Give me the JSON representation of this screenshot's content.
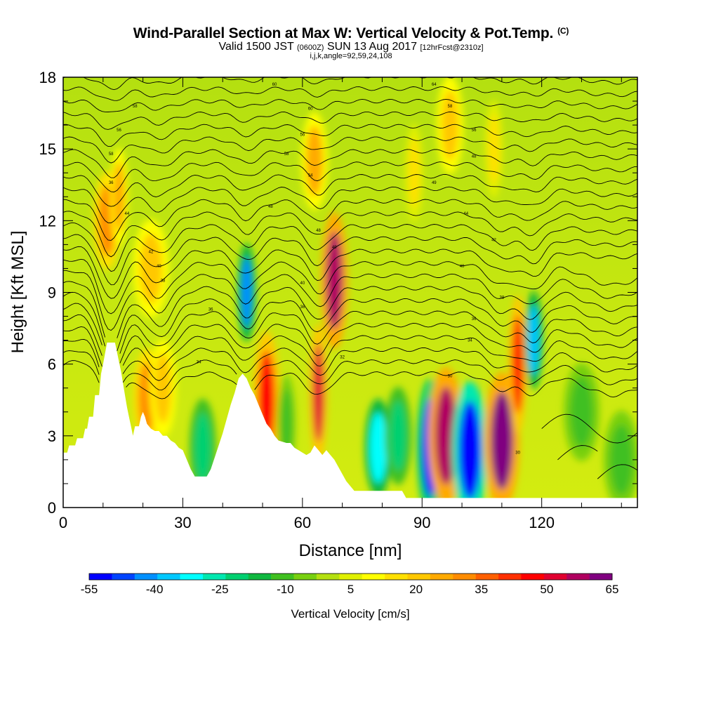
{
  "title": {
    "main": "Wind-Parallel Section at Max W: Vertical Velocity & Pot.Temp.",
    "copyright": "(C)",
    "valid_prefix": "Valid 1500 JST",
    "valid_utc": "(0600Z)",
    "valid_date": "SUN 13 Aug 2017",
    "forecast": "[12hrFcst@2310z]",
    "params": "i,j,k,angle=92,59,24,108"
  },
  "chart_data": {
    "type": "heatmap",
    "xlabel": "Distance [nm]",
    "ylabel": "Height [Kft MSL]",
    "xlim": [
      0,
      144
    ],
    "ylim": [
      0,
      18
    ],
    "xticks": [
      0,
      30,
      60,
      90,
      120
    ],
    "yticks": [
      0,
      3,
      6,
      9,
      12,
      15,
      18
    ],
    "colorbar": {
      "label": "Vertical Velocity [cm/s]",
      "tick_labels": [
        "-55",
        "-40",
        "-25",
        "-10",
        "5",
        "20",
        "35",
        "50",
        "65"
      ],
      "tick_values": [
        -55,
        -40,
        -25,
        -10,
        5,
        20,
        35,
        50,
        65
      ],
      "colors": [
        "#0000ff",
        "#0044ff",
        "#0090ff",
        "#00c8ff",
        "#00ffff",
        "#00e8b0",
        "#00d070",
        "#10b840",
        "#40c020",
        "#78d010",
        "#b4e010",
        "#e0f000",
        "#ffff00",
        "#ffe000",
        "#ffc800",
        "#ffaa00",
        "#ff8c00",
        "#ff6000",
        "#ff3000",
        "#ff0000",
        "#e00030",
        "#b00060",
        "#800080"
      ]
    },
    "terrain_profile": [
      [
        0,
        2.3
      ],
      [
        1,
        2.3
      ],
      [
        1.5,
        2.6
      ],
      [
        3,
        2.6
      ],
      [
        3.5,
        2.9
      ],
      [
        5,
        2.9
      ],
      [
        5.5,
        3.3
      ],
      [
        6,
        3.3
      ],
      [
        6.5,
        3.8
      ],
      [
        7.5,
        3.8
      ],
      [
        8,
        4.7
      ],
      [
        9,
        4.7
      ],
      [
        9.5,
        5.6
      ],
      [
        10,
        6
      ],
      [
        11,
        6.9
      ],
      [
        13,
        6.9
      ],
      [
        13.5,
        6.5
      ],
      [
        14,
        6.1
      ],
      [
        14.5,
        5.7
      ],
      [
        15,
        5.2
      ],
      [
        15.5,
        4.7
      ],
      [
        16,
        4.2
      ],
      [
        16.5,
        3.8
      ],
      [
        17,
        3.4
      ],
      [
        17.5,
        3
      ],
      [
        18,
        3.4
      ],
      [
        19,
        3.4
      ],
      [
        19.5,
        3.8
      ],
      [
        20,
        4
      ],
      [
        20.5,
        3.8
      ],
      [
        21,
        3.5
      ],
      [
        22,
        3.3
      ],
      [
        23,
        3.2
      ],
      [
        24,
        3.2
      ],
      [
        25,
        3.0
      ],
      [
        26,
        3.0
      ],
      [
        27,
        2.8
      ],
      [
        28,
        2.7
      ],
      [
        29,
        2.5
      ],
      [
        30,
        2.4
      ],
      [
        31,
        2.0
      ],
      [
        32,
        1.6
      ],
      [
        33,
        1.3
      ],
      [
        35,
        1.3
      ],
      [
        36,
        1.3
      ],
      [
        37,
        1.6
      ],
      [
        38,
        2.1
      ],
      [
        39,
        2.6
      ],
      [
        40,
        3.1
      ],
      [
        41,
        3.7
      ],
      [
        42,
        4.3
      ],
      [
        43,
        4.8
      ],
      [
        44,
        5.4
      ],
      [
        45,
        5.6
      ],
      [
        46,
        5.4
      ],
      [
        47,
        5.0
      ],
      [
        48,
        4.7
      ],
      [
        49,
        4.3
      ],
      [
        50,
        3.9
      ],
      [
        51,
        3.5
      ],
      [
        52,
        3.3
      ],
      [
        53,
        3.0
      ],
      [
        54,
        2.8
      ],
      [
        56,
        2.7
      ],
      [
        57,
        2.7
      ],
      [
        58,
        2.5
      ],
      [
        59,
        2.4
      ],
      [
        60,
        2.3
      ],
      [
        61,
        2.2
      ],
      [
        62,
        2.3
      ],
      [
        63,
        2.6
      ],
      [
        64,
        2.4
      ],
      [
        65,
        2.2
      ],
      [
        66,
        2.4
      ],
      [
        67,
        2.2
      ],
      [
        68,
        2.0
      ],
      [
        69,
        1.7
      ],
      [
        70,
        1.4
      ],
      [
        71,
        1.1
      ],
      [
        72,
        0.9
      ],
      [
        73,
        0.7
      ],
      [
        80,
        0.7
      ],
      [
        85,
        0.7
      ],
      [
        86,
        0.4
      ],
      [
        87,
        0.4
      ],
      [
        114,
        0.4
      ],
      [
        116,
        0.4
      ],
      [
        120,
        0.4
      ],
      [
        144,
        0.4
      ]
    ],
    "velocity_cells": [
      {
        "x": 11,
        "y": 12,
        "w": 3,
        "value": 30
      },
      {
        "x": 14,
        "y": 13,
        "w": 2,
        "value": 25
      },
      {
        "x": 22,
        "y": 10,
        "w": 4,
        "value": 20
      },
      {
        "x": 21,
        "y": 4.6,
        "w": 3,
        "value": 30
      },
      {
        "x": 25,
        "y": 5.0,
        "w": 3,
        "value": 20
      },
      {
        "x": 35,
        "y": 2.5,
        "w": 3,
        "value": -20
      },
      {
        "x": 46,
        "y": 9.0,
        "w": 2,
        "value": -40
      },
      {
        "x": 51,
        "y": 4.5,
        "w": 3,
        "value": 45
      },
      {
        "x": 56,
        "y": 3.5,
        "w": 2,
        "value": -10
      },
      {
        "x": 64,
        "y": 4.8,
        "w": 2,
        "value": 50
      },
      {
        "x": 68,
        "y": 9.5,
        "w": 3,
        "value": 55
      },
      {
        "x": 63,
        "y": 14.5,
        "w": 3,
        "value": 25
      },
      {
        "x": 79,
        "y": 2.5,
        "w": 3,
        "value": -30
      },
      {
        "x": 84,
        "y": 3.0,
        "w": 3,
        "value": -20
      },
      {
        "x": 92,
        "y": 2.5,
        "w": 3,
        "value": -50
      },
      {
        "x": 96,
        "y": 3.0,
        "w": 4,
        "value": 55
      },
      {
        "x": 102,
        "y": 2.4,
        "w": 4,
        "value": -55
      },
      {
        "x": 110,
        "y": 2.8,
        "w": 4,
        "value": 60
      },
      {
        "x": 114,
        "y": 6.0,
        "w": 2,
        "value": 45
      },
      {
        "x": 118,
        "y": 7.0,
        "w": 2,
        "value": -35
      },
      {
        "x": 88,
        "y": 14.0,
        "w": 2,
        "value": 15
      },
      {
        "x": 97,
        "y": 16.0,
        "w": 3,
        "value": 20
      },
      {
        "x": 108,
        "y": 15.0,
        "w": 2,
        "value": 15
      },
      {
        "x": 130,
        "y": 4.0,
        "w": 4,
        "value": -10
      },
      {
        "x": 140,
        "y": 2.0,
        "w": 4,
        "value": -10
      }
    ],
    "contour_labels": [
      {
        "x": 53,
        "y": 17.7,
        "text": "60"
      },
      {
        "x": 93,
        "y": 17.7,
        "text": "64"
      },
      {
        "x": 18,
        "y": 16.8,
        "text": "58"
      },
      {
        "x": 62,
        "y": 16.7,
        "text": "60"
      },
      {
        "x": 97,
        "y": 16.8,
        "text": "58"
      },
      {
        "x": 14,
        "y": 15.8,
        "text": "56"
      },
      {
        "x": 60,
        "y": 15.6,
        "text": "56"
      },
      {
        "x": 103,
        "y": 15.8,
        "text": "56"
      },
      {
        "x": 12,
        "y": 14.8,
        "text": "58"
      },
      {
        "x": 56,
        "y": 14.8,
        "text": "58"
      },
      {
        "x": 103,
        "y": 14.7,
        "text": "48"
      },
      {
        "x": 12,
        "y": 13.6,
        "text": "36"
      },
      {
        "x": 62,
        "y": 13.9,
        "text": "54"
      },
      {
        "x": 93,
        "y": 13.6,
        "text": "49"
      },
      {
        "x": 16,
        "y": 12.3,
        "text": "44"
      },
      {
        "x": 52,
        "y": 12.6,
        "text": "48"
      },
      {
        "x": 101,
        "y": 12.3,
        "text": "44"
      },
      {
        "x": 64,
        "y": 11.6,
        "text": "48"
      },
      {
        "x": 68,
        "y": 10.9,
        "text": "49"
      },
      {
        "x": 108,
        "y": 11.2,
        "text": "42"
      },
      {
        "x": 22,
        "y": 10.7,
        "text": "42"
      },
      {
        "x": 24,
        "y": 10.1,
        "text": "40"
      },
      {
        "x": 100,
        "y": 10.1,
        "text": "40"
      },
      {
        "x": 25,
        "y": 9.5,
        "text": "38"
      },
      {
        "x": 60,
        "y": 9.4,
        "text": "40"
      },
      {
        "x": 110,
        "y": 8.8,
        "text": "38"
      },
      {
        "x": 37,
        "y": 8.3,
        "text": "36"
      },
      {
        "x": 60,
        "y": 8.4,
        "text": "36"
      },
      {
        "x": 103,
        "y": 7.9,
        "text": "36"
      },
      {
        "x": 102,
        "y": 7.0,
        "text": "34"
      },
      {
        "x": 34,
        "y": 6.1,
        "text": "34"
      },
      {
        "x": 70,
        "y": 6.3,
        "text": "32"
      },
      {
        "x": 97,
        "y": 5.5,
        "text": "30"
      },
      {
        "x": 114,
        "y": 2.3,
        "text": "30"
      }
    ]
  }
}
